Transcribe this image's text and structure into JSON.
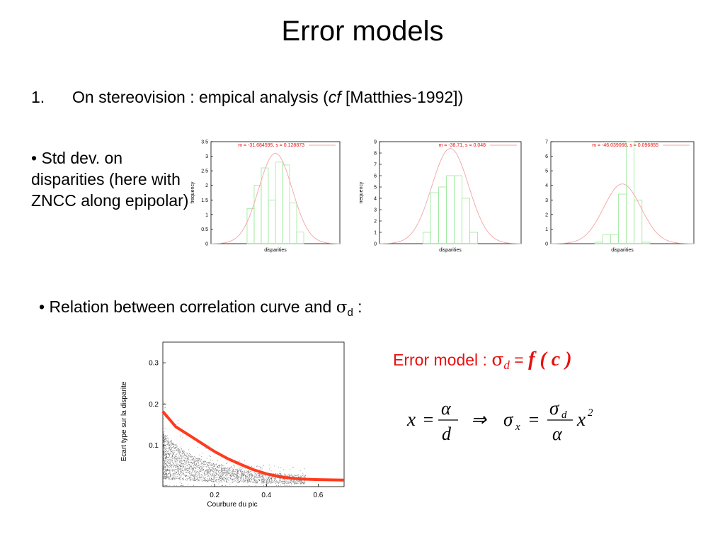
{
  "slide": {
    "title": "Error models",
    "item1": {
      "number": "1.",
      "text_before": "On stereovision : empical analysis (",
      "cf": "cf",
      "text_after": " [Matthies-1992])"
    },
    "bullet1": "• Std dev. on disparities (here with ZNCC along epipolar)",
    "bullet2": {
      "text": "• Relation between correlation curve and ",
      "symbol": "σ",
      "subscript": "d",
      "suffix": " :"
    },
    "error_model": {
      "label": "Error model : ",
      "sigma": "σ",
      "sub": "d",
      "equals": " = ",
      "f": "f",
      "args": " ( c )"
    },
    "formula": {
      "x": "x",
      "eq": "=",
      "alpha": "α",
      "d": "d",
      "implies": "⇒",
      "sigma": "σ",
      "sub_x": "x",
      "sub_d": "d",
      "x2": "x",
      "exp": "2"
    }
  },
  "chart_data": [
    {
      "type": "bar",
      "title": "m = -31.684595, s = 0.128873",
      "xlabel": "disparities",
      "ylabel": "frequency",
      "ylim": [
        0,
        3.5
      ],
      "yticks": [
        "0",
        "0.5",
        "1",
        "1.5",
        "2",
        "2.5",
        "3",
        "3.5"
      ],
      "values": [
        1.2,
        2.0,
        2.6,
        1.5,
        2.8,
        2.7,
        1.4,
        0.4
      ],
      "gaussian": {
        "mean": 31.684595,
        "sd": 0.128873,
        "peak": 3.1
      }
    },
    {
      "type": "bar",
      "title": "m = -38.71, s = 0.048",
      "xlabel": "disparities",
      "ylabel": "frequency",
      "ylim": [
        0,
        9
      ],
      "yticks": [
        "0",
        "1",
        "2",
        "3",
        "4",
        "5",
        "6",
        "7",
        "8",
        "9"
      ],
      "values": [
        1.0,
        4.5,
        5.0,
        6.0,
        6.0,
        4.0,
        1.0
      ],
      "gaussian": {
        "mean": 38.71,
        "sd": 0.048,
        "peak": 8.4
      }
    },
    {
      "type": "bar",
      "title": "m = -46.039066, s = 0.096855",
      "xlabel": "disparities",
      "ylabel": "frequency",
      "ylim": [
        0,
        7
      ],
      "yticks": [
        "0",
        "1",
        "2",
        "3",
        "4",
        "5",
        "6",
        "7"
      ],
      "values": [
        0.1,
        0.6,
        0.6,
        3.4,
        7.0,
        3.0,
        0.1
      ],
      "gaussian": {
        "mean": 46.039066,
        "sd": 0.096855,
        "peak": 4.1
      }
    },
    {
      "type": "scatter",
      "xlabel": "Courbure du pic",
      "ylabel": "Ecart type sur la disparite",
      "xlim": [
        0,
        0.7
      ],
      "ylim": [
        0,
        0.35
      ],
      "xticks": [
        "0.2",
        "0.4",
        "0.6"
      ],
      "yticks": [
        "0.1",
        "0.2",
        "0.3"
      ],
      "fit_curve": [
        [
          0,
          0.182
        ],
        [
          0.05,
          0.145
        ],
        [
          0.1,
          0.125
        ],
        [
          0.15,
          0.105
        ],
        [
          0.2,
          0.085
        ],
        [
          0.25,
          0.068
        ],
        [
          0.3,
          0.054
        ],
        [
          0.35,
          0.041
        ],
        [
          0.4,
          0.031
        ],
        [
          0.45,
          0.024
        ],
        [
          0.5,
          0.02
        ],
        [
          0.55,
          0.018
        ],
        [
          0.6,
          0.017
        ],
        [
          0.7,
          0.016
        ]
      ]
    }
  ]
}
